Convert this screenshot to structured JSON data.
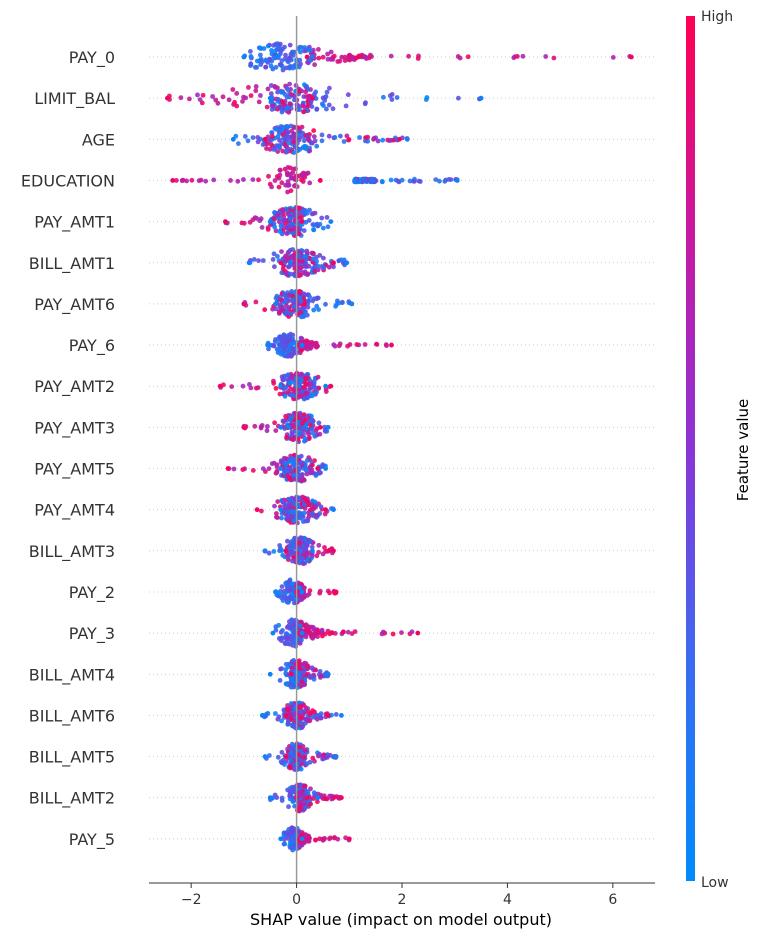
{
  "chart_data": {
    "type": "scatter",
    "subtype": "shap-beeswarm",
    "title": "",
    "xlabel": "SHAP value (impact on model output)",
    "ylabel": "",
    "xlim": [
      -2.8,
      6.8
    ],
    "xticks": [
      -2,
      0,
      2,
      4,
      6
    ],
    "xtick_labels": [
      "−2",
      "0",
      "2",
      "4",
      "6"
    ],
    "zero_line": true,
    "grid": false,
    "colorbar": {
      "title": "Feature value",
      "high_label": "High",
      "low_label": "Low",
      "high_color": "#ff0052",
      "low_color": "#008bfb",
      "mid_color": "#8a34d6"
    },
    "features": [
      {
        "name": "PAY_0",
        "low_min": -1.0,
        "low_max": 0.3,
        "high_min": 0.2,
        "high_max": 6.35,
        "mode": -0.3,
        "spread": 0.9,
        "width": 12
      },
      {
        "name": "LIMIT_BAL",
        "low_min": -0.5,
        "low_max": 3.5,
        "high_min": -2.45,
        "high_max": 0.3,
        "mode": -0.1,
        "spread": 1.4,
        "width": 13
      },
      {
        "name": "AGE",
        "low_min": -1.2,
        "low_max": 2.1,
        "high_min": -0.6,
        "high_max": 1.95,
        "mode": -0.1,
        "spread": 0.8,
        "width": 12
      },
      {
        "name": "EDUCATION",
        "low_min": 1.1,
        "low_max": 3.05,
        "high_min": -2.35,
        "high_max": 0.45,
        "mode": -0.1,
        "spread": 0.4,
        "width": 12
      },
      {
        "name": "PAY_AMT1",
        "low_min": -0.5,
        "low_max": 0.65,
        "high_min": -1.35,
        "high_max": 0.1,
        "mode": 0.0,
        "spread": 0.6,
        "width": 13
      },
      {
        "name": "BILL_AMT1",
        "low_min": -0.9,
        "low_max": 0.95,
        "high_min": -0.3,
        "high_max": 0.7,
        "mode": 0.0,
        "spread": 0.6,
        "width": 12
      },
      {
        "name": "PAY_AMT6",
        "low_min": -0.4,
        "low_max": 1.05,
        "high_min": -1.0,
        "high_max": 0.15,
        "mode": 0.0,
        "spread": 0.6,
        "width": 12
      },
      {
        "name": "PAY_6",
        "low_min": -0.55,
        "low_max": 0.1,
        "high_min": 0.05,
        "high_max": 1.8,
        "mode": -0.15,
        "spread": 0.3,
        "width": 10
      },
      {
        "name": "PAY_AMT2",
        "low_min": -0.3,
        "low_max": 0.55,
        "high_min": -1.45,
        "high_max": 0.65,
        "mode": 0.05,
        "spread": 0.5,
        "width": 12
      },
      {
        "name": "PAY_AMT3",
        "low_min": -0.3,
        "low_max": 0.6,
        "high_min": -1.0,
        "high_max": 0.45,
        "mode": 0.05,
        "spread": 0.45,
        "width": 13
      },
      {
        "name": "PAY_AMT5",
        "low_min": -0.3,
        "low_max": 0.55,
        "high_min": -1.3,
        "high_max": 0.4,
        "mode": 0.0,
        "spread": 0.45,
        "width": 12
      },
      {
        "name": "PAY_AMT4",
        "low_min": -0.3,
        "low_max": 0.7,
        "high_min": -0.75,
        "high_max": 0.55,
        "mode": 0.0,
        "spread": 0.45,
        "width": 12
      },
      {
        "name": "BILL_AMT3",
        "low_min": -0.6,
        "low_max": 0.3,
        "high_min": -0.2,
        "high_max": 0.7,
        "mode": 0.05,
        "spread": 0.35,
        "width": 12
      },
      {
        "name": "PAY_2",
        "low_min": -0.4,
        "low_max": 0.1,
        "high_min": 0.0,
        "high_max": 0.75,
        "mode": -0.1,
        "spread": 0.25,
        "width": 11
      },
      {
        "name": "PAY_3",
        "low_min": -0.45,
        "low_max": 0.1,
        "high_min": 0.05,
        "high_max": 2.3,
        "mode": -0.05,
        "spread": 0.35,
        "width": 12
      },
      {
        "name": "BILL_AMT4",
        "low_min": -0.5,
        "low_max": 0.6,
        "high_min": -0.1,
        "high_max": 0.6,
        "mode": 0.0,
        "spread": 0.3,
        "width": 13
      },
      {
        "name": "BILL_AMT6",
        "low_min": -0.65,
        "low_max": 0.85,
        "high_min": -0.2,
        "high_max": 0.6,
        "mode": 0.0,
        "spread": 0.3,
        "width": 12
      },
      {
        "name": "BILL_AMT5",
        "low_min": -0.6,
        "low_max": 0.75,
        "high_min": -0.2,
        "high_max": 0.75,
        "mode": 0.0,
        "spread": 0.3,
        "width": 12
      },
      {
        "name": "BILL_AMT2",
        "low_min": -0.5,
        "low_max": 0.4,
        "high_min": 0.0,
        "high_max": 0.85,
        "mode": 0.05,
        "spread": 0.3,
        "width": 12
      },
      {
        "name": "PAY_5",
        "low_min": -0.3,
        "low_max": 0.1,
        "high_min": 0.05,
        "high_max": 1.0,
        "mode": -0.05,
        "spread": 0.2,
        "width": 10
      }
    ]
  }
}
